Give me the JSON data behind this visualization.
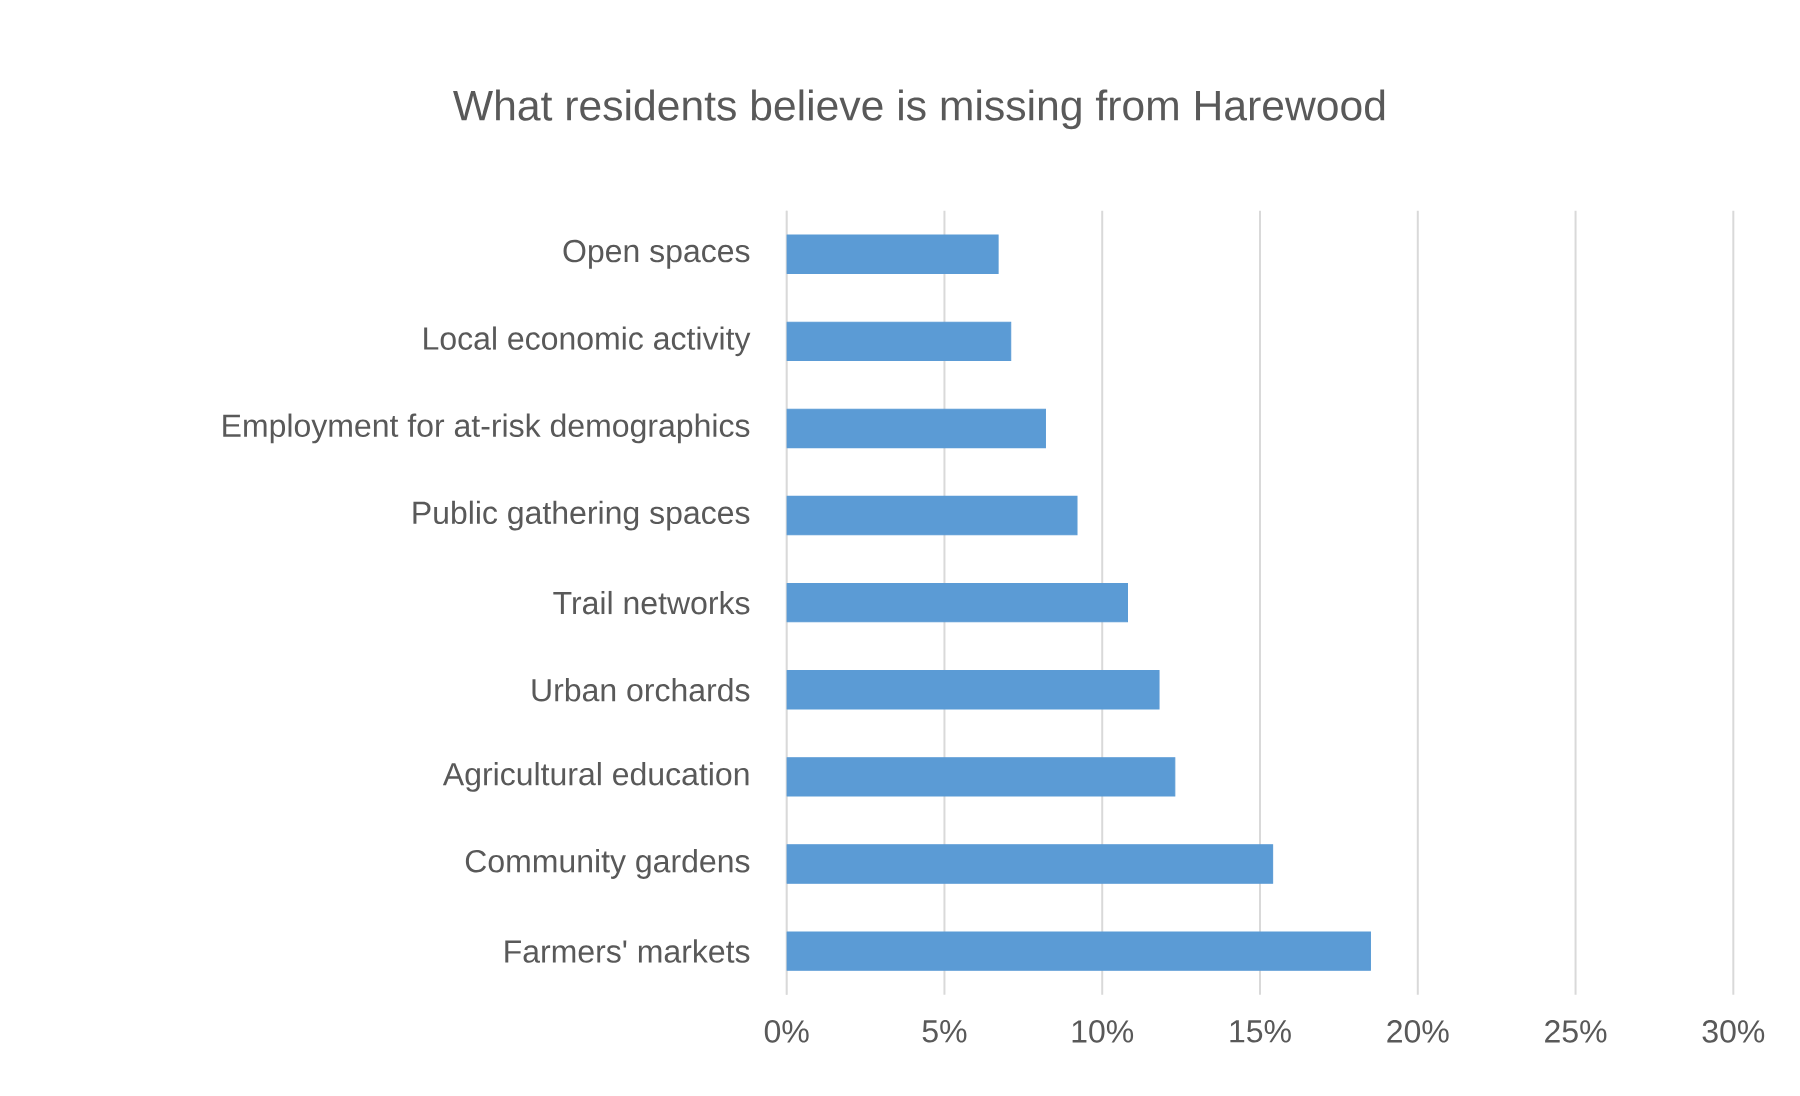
{
  "chart_data": {
    "type": "bar",
    "orientation": "horizontal",
    "title": "What residents believe is missing from Harewood",
    "categories": [
      "Open spaces",
      "Local economic activity",
      "Employment for at-risk demographics",
      "Public gathering spaces",
      "Trail networks",
      "Urban orchards",
      "Agricultural education",
      "Community gardens",
      "Farmers' markets"
    ],
    "values": [
      6.7,
      7.1,
      8.2,
      9.2,
      10.8,
      11.8,
      12.3,
      15.4,
      18.5
    ],
    "color": "#5b9bd5",
    "xlim": [
      0,
      30
    ],
    "xticks": [
      {
        "value": 0,
        "label": "0%"
      },
      {
        "value": 5,
        "label": "5%"
      },
      {
        "value": 10,
        "label": "10%"
      },
      {
        "value": 15,
        "label": "15%"
      },
      {
        "value": 20,
        "label": "20%"
      },
      {
        "value": 25,
        "label": "25%"
      },
      {
        "value": 30,
        "label": "30%"
      }
    ],
    "grid": "x"
  }
}
